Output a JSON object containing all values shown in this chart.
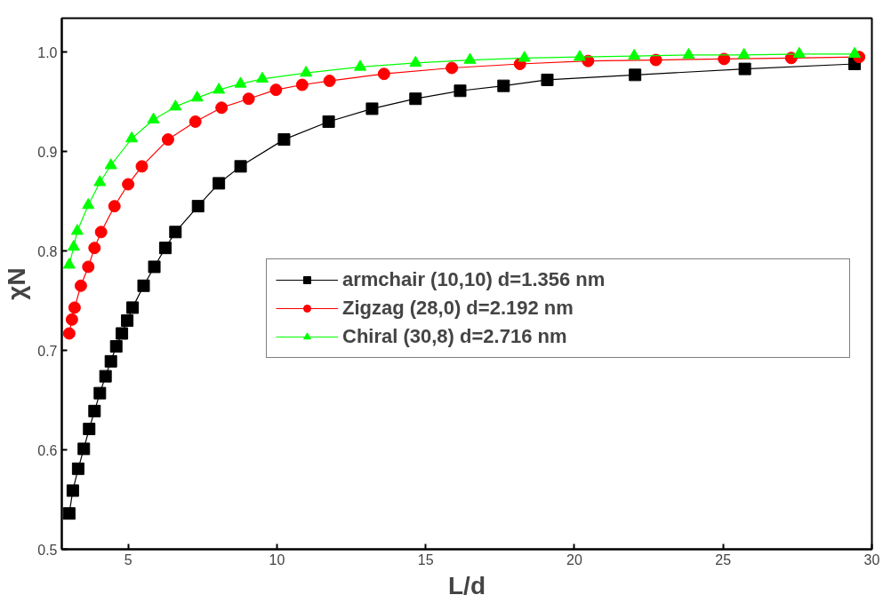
{
  "chart_data": {
    "type": "line",
    "xlabel": "L/d",
    "ylabel": "χN",
    "xlim": [
      2.77,
      30
    ],
    "ylim": [
      0.5,
      1.034
    ],
    "xticks": [
      5,
      10,
      15,
      20,
      25,
      30
    ],
    "yticks": [
      {
        "value": 0.5,
        "label": "0.5"
      },
      {
        "value": 0.6,
        "label": "0.6"
      },
      {
        "value": 0.7,
        "label": "0.7"
      },
      {
        "value": 0.8,
        "label": "0.8"
      },
      {
        "value": 0.9,
        "label": "0.9"
      },
      {
        "value": 1.0,
        "label": "1.0"
      }
    ],
    "grid": false,
    "legend": "right",
    "line_style": "solid",
    "series": [
      {
        "name": "armchair (10,10) d=1.356 nm",
        "color": "#000000",
        "marker": "square",
        "x": [
          3.02,
          3.14,
          3.32,
          3.51,
          3.69,
          3.87,
          4.05,
          4.24,
          4.42,
          4.6,
          4.79,
          4.97,
          5.15,
          5.52,
          5.88,
          6.25,
          6.59,
          7.35,
          8.05,
          8.78,
          10.24,
          11.74,
          13.2,
          14.66,
          16.16,
          17.62,
          19.09,
          22.04,
          25.73,
          29.42
        ],
        "values": [
          0.536,
          0.559,
          0.581,
          0.601,
          0.621,
          0.639,
          0.657,
          0.674,
          0.689,
          0.704,
          0.717,
          0.73,
          0.743,
          0.765,
          0.784,
          0.803,
          0.819,
          0.845,
          0.868,
          0.885,
          0.912,
          0.93,
          0.943,
          0.953,
          0.961,
          0.966,
          0.972,
          0.977,
          0.983,
          0.988
        ]
      },
      {
        "name": "Zigzag (28,0) d=2.192 nm",
        "color": "#ff0000",
        "marker": "circle",
        "x": [
          3.02,
          3.11,
          3.2,
          3.41,
          3.66,
          3.87,
          4.09,
          4.54,
          5.0,
          5.46,
          6.34,
          7.26,
          8.14,
          9.05,
          9.97,
          10.85,
          11.77,
          13.6,
          15.88,
          18.17,
          20.46,
          22.74,
          25.03,
          27.29,
          29.57
        ],
        "values": [
          0.717,
          0.731,
          0.743,
          0.765,
          0.784,
          0.803,
          0.819,
          0.845,
          0.867,
          0.885,
          0.912,
          0.93,
          0.944,
          0.953,
          0.962,
          0.967,
          0.971,
          0.978,
          0.984,
          0.988,
          0.991,
          0.992,
          0.993,
          0.994,
          0.995
        ]
      },
      {
        "name": "Chiral (30,8) d=2.716 nm",
        "color": "#00ff00",
        "marker": "triangle",
        "x": [
          3.02,
          3.17,
          3.29,
          3.66,
          4.05,
          4.42,
          5.12,
          5.85,
          6.59,
          7.32,
          8.05,
          8.78,
          9.51,
          10.98,
          12.8,
          14.66,
          16.49,
          18.32,
          20.18,
          22.01,
          23.84,
          25.7,
          27.56,
          29.42
        ],
        "values": [
          0.786,
          0.804,
          0.82,
          0.846,
          0.869,
          0.886,
          0.913,
          0.932,
          0.945,
          0.954,
          0.962,
          0.968,
          0.973,
          0.979,
          0.985,
          0.989,
          0.992,
          0.994,
          0.995,
          0.996,
          0.997,
          0.997,
          0.998,
          0.998
        ]
      }
    ]
  }
}
